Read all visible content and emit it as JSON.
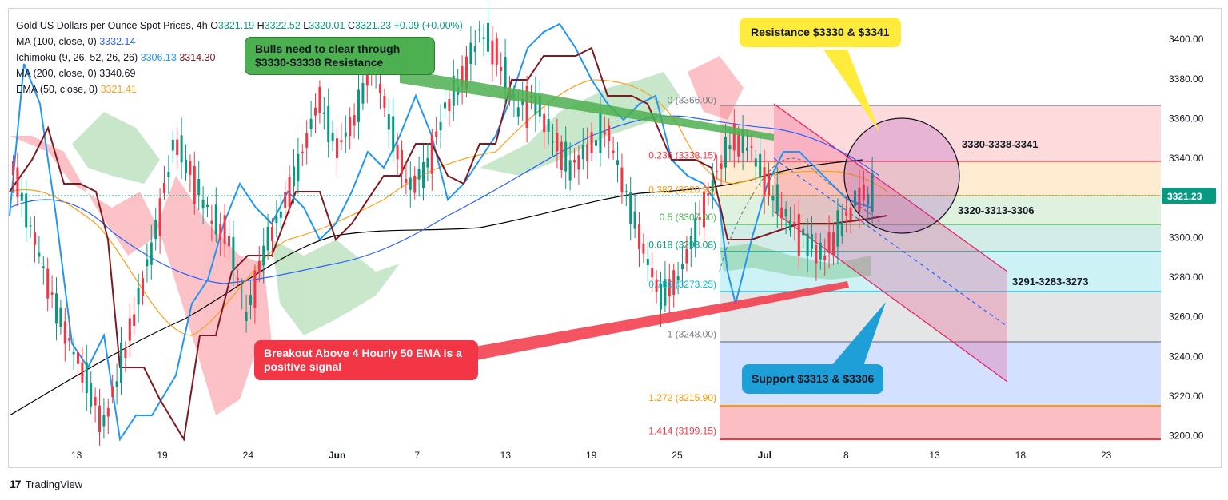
{
  "header": {
    "symbol": "Gold US Dollars per Ounce Spot Prices, 4h",
    "o_label": "O",
    "o_val": "3321.19",
    "h_label": "H",
    "h_val": "3322.52",
    "l_label": "L",
    "l_val": "3320.01",
    "c_label": "C",
    "c_val": "3321.23",
    "change": "+0.09 (+0.00%)"
  },
  "indicators": [
    {
      "label": "MA (100, close, 0)",
      "value": "3332.14",
      "color": "#2962ff"
    },
    {
      "label": "Ichimoku (9, 26, 52, 26, 26)",
      "value": "3306.13",
      "value2": "3314.30",
      "color": "#2196f3",
      "color2": "#801922"
    },
    {
      "label": "MA (200, close, 0)",
      "value": "3340.69",
      "color": "#000000"
    },
    {
      "label": "EMA (50, close, 0)",
      "value": "3321.41",
      "color": "#f7a21b"
    }
  ],
  "callouts": {
    "bulls": "Bulls need to clear through $3330-$3338 Resistance",
    "resistance": "Resistance $3330 & $3341",
    "breakout": "Breakout Above 4 Hourly 50 EMA is a positive signal",
    "support": "Support $3313 & $3306"
  },
  "zone_labels": {
    "resistance_zone": "3330-3338-3341",
    "support_zone": "3320-3313-3306",
    "lower_zone": "3291-3283-3273"
  },
  "price_tag": "3321.23",
  "branding": "TradingView",
  "colors": {
    "up": "#089981",
    "down": "#f23645",
    "ema50": "#f7a21b",
    "ma100": "#2962ff",
    "ma200": "#000000",
    "tenkan": "#2196f3",
    "kijun": "#801922",
    "bulls_box": "#4caf50",
    "resistance_box": "#ffeb3b",
    "breakout_box": "#f23645",
    "support_box": "#1e9fd8"
  },
  "chart_data": {
    "type": "candlestick",
    "title": "Gold US Dollars per Ounce Spot Prices, 4h",
    "y_ticks": [
      3200,
      3220,
      3240,
      3260,
      3280,
      3300,
      3320,
      3340,
      3360,
      3380,
      3400
    ],
    "y_tick_labels": [
      "3200.00",
      "3220.00",
      "3240.00",
      "3260.00",
      "3280.00",
      "3300.00",
      "3320.00",
      "3340.00",
      "3360.00",
      "3380.00",
      "3400.00"
    ],
    "ylim": [
      3195,
      3415
    ],
    "x_ticks": [
      "13",
      "19",
      "24",
      "Jun",
      "7",
      "13",
      "19",
      "25",
      "Jul",
      "8",
      "13",
      "18",
      "23"
    ],
    "fib_levels": [
      {
        "ratio": "0",
        "label": "0 (3366.00)",
        "value": 3366.0,
        "color": "#787b86"
      },
      {
        "ratio": "0.236",
        "label": "0.236 (3338.15)",
        "value": 3338.15,
        "color": "#f23645"
      },
      {
        "ratio": "0.382",
        "label": "0.382 (3320.92)",
        "value": 3320.92,
        "color": "#ff9800"
      },
      {
        "ratio": "0.5",
        "label": "0.5 (3307.00)",
        "value": 3307.0,
        "color": "#4caf50"
      },
      {
        "ratio": "0.618",
        "label": "0.618 (3293.08)",
        "value": 3293.08,
        "color": "#089981"
      },
      {
        "ratio": "0.786",
        "label": "0.786 (3273.25)",
        "value": 3273.25,
        "color": "#00bcd4"
      },
      {
        "ratio": "1",
        "label": "1 (3248.00)",
        "value": 3248.0,
        "color": "#787b86"
      },
      {
        "ratio": "1.272",
        "label": "1.272 (3215.90)",
        "value": 3215.9,
        "color": "#ff9800"
      },
      {
        "ratio": "1.414",
        "label": "1.414 (3199.15)",
        "value": 3199.15,
        "color": "#f23645"
      }
    ],
    "last_price": 3321.23,
    "ohlc_sample": [
      [
        3310,
        3340,
        3295,
        3335
      ],
      [
        3335,
        3345,
        3300,
        3305
      ],
      [
        3305,
        3320,
        3270,
        3275
      ],
      [
        3275,
        3290,
        3240,
        3250
      ],
      [
        3250,
        3265,
        3220,
        3230
      ],
      [
        3230,
        3245,
        3195,
        3205
      ],
      [
        3205,
        3240,
        3200,
        3235
      ],
      [
        3235,
        3275,
        3230,
        3270
      ],
      [
        3270,
        3310,
        3265,
        3305
      ],
      [
        3305,
        3360,
        3300,
        3350
      ],
      [
        3350,
        3365,
        3320,
        3330
      ],
      [
        3330,
        3340,
        3300,
        3310
      ],
      [
        3310,
        3320,
        3285,
        3300
      ],
      [
        3300,
        3310,
        3250,
        3260
      ],
      [
        3260,
        3300,
        3255,
        3295
      ],
      [
        3295,
        3320,
        3290,
        3315
      ],
      [
        3315,
        3345,
        3310,
        3340
      ],
      [
        3340,
        3375,
        3335,
        3370
      ],
      [
        3370,
        3390,
        3340,
        3345
      ],
      [
        3345,
        3370,
        3335,
        3360
      ],
      [
        3360,
        3395,
        3355,
        3390
      ],
      [
        3390,
        3400,
        3350,
        3355
      ],
      [
        3355,
        3365,
        3320,
        3325
      ],
      [
        3325,
        3340,
        3305,
        3335
      ],
      [
        3335,
        3370,
        3330,
        3365
      ],
      [
        3365,
        3385,
        3355,
        3380
      ],
      [
        3380,
        3410,
        3375,
        3405
      ],
      [
        3405,
        3410,
        3380,
        3390
      ],
      [
        3390,
        3400,
        3360,
        3365
      ],
      [
        3365,
        3380,
        3350,
        3370
      ],
      [
        3370,
        3380,
        3345,
        3350
      ],
      [
        3350,
        3355,
        3330,
        3335
      ],
      [
        3335,
        3350,
        3320,
        3345
      ],
      [
        3345,
        3360,
        3330,
        3355
      ],
      [
        3355,
        3360,
        3320,
        3325
      ],
      [
        3325,
        3330,
        3290,
        3295
      ],
      [
        3295,
        3300,
        3265,
        3270
      ],
      [
        3270,
        3285,
        3252,
        3280
      ],
      [
        3280,
        3310,
        3275,
        3305
      ],
      [
        3305,
        3335,
        3300,
        3330
      ],
      [
        3330,
        3355,
        3325,
        3350
      ],
      [
        3350,
        3366,
        3340,
        3345
      ],
      [
        3345,
        3350,
        3320,
        3325
      ],
      [
        3325,
        3335,
        3300,
        3310
      ],
      [
        3310,
        3330,
        3295,
        3300
      ],
      [
        3300,
        3312,
        3285,
        3290
      ],
      [
        3290,
        3310,
        3283,
        3305
      ],
      [
        3305,
        3325,
        3300,
        3321
      ]
    ]
  }
}
